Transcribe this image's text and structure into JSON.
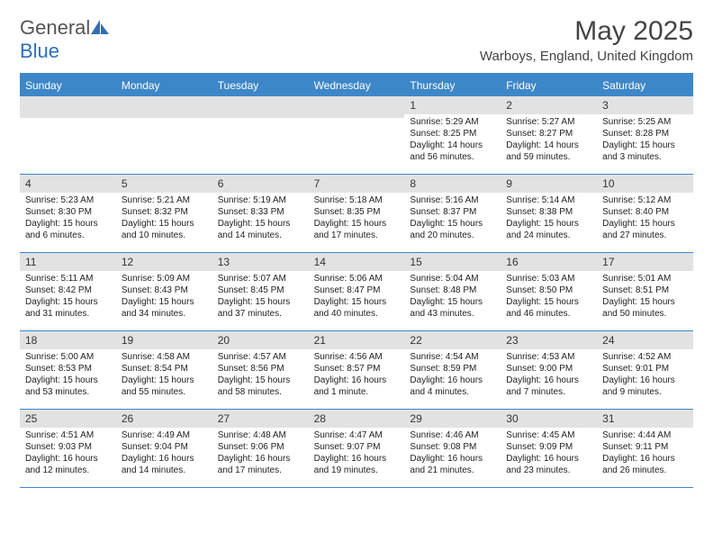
{
  "logo": {
    "part1": "General",
    "part2": "Blue"
  },
  "header": {
    "month_title": "May 2025",
    "location": "Warboys, England, United Kingdom"
  },
  "style": {
    "accent": "#3d87c8",
    "header_text": "#ffffff",
    "num_bg": "#e2e2e2",
    "body_text": "#222222",
    "logo_gray": "#555555",
    "logo_blue": "#2d6fb5"
  },
  "day_names": [
    "Sunday",
    "Monday",
    "Tuesday",
    "Wednesday",
    "Thursday",
    "Friday",
    "Saturday"
  ],
  "weeks": [
    [
      {
        "empty": true
      },
      {
        "empty": true
      },
      {
        "empty": true
      },
      {
        "empty": true
      },
      {
        "num": "1",
        "sunrise": "Sunrise: 5:29 AM",
        "sunset": "Sunset: 8:25 PM",
        "daylight": "Daylight: 14 hours and 56 minutes."
      },
      {
        "num": "2",
        "sunrise": "Sunrise: 5:27 AM",
        "sunset": "Sunset: 8:27 PM",
        "daylight": "Daylight: 14 hours and 59 minutes."
      },
      {
        "num": "3",
        "sunrise": "Sunrise: 5:25 AM",
        "sunset": "Sunset: 8:28 PM",
        "daylight": "Daylight: 15 hours and 3 minutes."
      }
    ],
    [
      {
        "num": "4",
        "sunrise": "Sunrise: 5:23 AM",
        "sunset": "Sunset: 8:30 PM",
        "daylight": "Daylight: 15 hours and 6 minutes."
      },
      {
        "num": "5",
        "sunrise": "Sunrise: 5:21 AM",
        "sunset": "Sunset: 8:32 PM",
        "daylight": "Daylight: 15 hours and 10 minutes."
      },
      {
        "num": "6",
        "sunrise": "Sunrise: 5:19 AM",
        "sunset": "Sunset: 8:33 PM",
        "daylight": "Daylight: 15 hours and 14 minutes."
      },
      {
        "num": "7",
        "sunrise": "Sunrise: 5:18 AM",
        "sunset": "Sunset: 8:35 PM",
        "daylight": "Daylight: 15 hours and 17 minutes."
      },
      {
        "num": "8",
        "sunrise": "Sunrise: 5:16 AM",
        "sunset": "Sunset: 8:37 PM",
        "daylight": "Daylight: 15 hours and 20 minutes."
      },
      {
        "num": "9",
        "sunrise": "Sunrise: 5:14 AM",
        "sunset": "Sunset: 8:38 PM",
        "daylight": "Daylight: 15 hours and 24 minutes."
      },
      {
        "num": "10",
        "sunrise": "Sunrise: 5:12 AM",
        "sunset": "Sunset: 8:40 PM",
        "daylight": "Daylight: 15 hours and 27 minutes."
      }
    ],
    [
      {
        "num": "11",
        "sunrise": "Sunrise: 5:11 AM",
        "sunset": "Sunset: 8:42 PM",
        "daylight": "Daylight: 15 hours and 31 minutes."
      },
      {
        "num": "12",
        "sunrise": "Sunrise: 5:09 AM",
        "sunset": "Sunset: 8:43 PM",
        "daylight": "Daylight: 15 hours and 34 minutes."
      },
      {
        "num": "13",
        "sunrise": "Sunrise: 5:07 AM",
        "sunset": "Sunset: 8:45 PM",
        "daylight": "Daylight: 15 hours and 37 minutes."
      },
      {
        "num": "14",
        "sunrise": "Sunrise: 5:06 AM",
        "sunset": "Sunset: 8:47 PM",
        "daylight": "Daylight: 15 hours and 40 minutes."
      },
      {
        "num": "15",
        "sunrise": "Sunrise: 5:04 AM",
        "sunset": "Sunset: 8:48 PM",
        "daylight": "Daylight: 15 hours and 43 minutes."
      },
      {
        "num": "16",
        "sunrise": "Sunrise: 5:03 AM",
        "sunset": "Sunset: 8:50 PM",
        "daylight": "Daylight: 15 hours and 46 minutes."
      },
      {
        "num": "17",
        "sunrise": "Sunrise: 5:01 AM",
        "sunset": "Sunset: 8:51 PM",
        "daylight": "Daylight: 15 hours and 50 minutes."
      }
    ],
    [
      {
        "num": "18",
        "sunrise": "Sunrise: 5:00 AM",
        "sunset": "Sunset: 8:53 PM",
        "daylight": "Daylight: 15 hours and 53 minutes."
      },
      {
        "num": "19",
        "sunrise": "Sunrise: 4:58 AM",
        "sunset": "Sunset: 8:54 PM",
        "daylight": "Daylight: 15 hours and 55 minutes."
      },
      {
        "num": "20",
        "sunrise": "Sunrise: 4:57 AM",
        "sunset": "Sunset: 8:56 PM",
        "daylight": "Daylight: 15 hours and 58 minutes."
      },
      {
        "num": "21",
        "sunrise": "Sunrise: 4:56 AM",
        "sunset": "Sunset: 8:57 PM",
        "daylight": "Daylight: 16 hours and 1 minute."
      },
      {
        "num": "22",
        "sunrise": "Sunrise: 4:54 AM",
        "sunset": "Sunset: 8:59 PM",
        "daylight": "Daylight: 16 hours and 4 minutes."
      },
      {
        "num": "23",
        "sunrise": "Sunrise: 4:53 AM",
        "sunset": "Sunset: 9:00 PM",
        "daylight": "Daylight: 16 hours and 7 minutes."
      },
      {
        "num": "24",
        "sunrise": "Sunrise: 4:52 AM",
        "sunset": "Sunset: 9:01 PM",
        "daylight": "Daylight: 16 hours and 9 minutes."
      }
    ],
    [
      {
        "num": "25",
        "sunrise": "Sunrise: 4:51 AM",
        "sunset": "Sunset: 9:03 PM",
        "daylight": "Daylight: 16 hours and 12 minutes."
      },
      {
        "num": "26",
        "sunrise": "Sunrise: 4:49 AM",
        "sunset": "Sunset: 9:04 PM",
        "daylight": "Daylight: 16 hours and 14 minutes."
      },
      {
        "num": "27",
        "sunrise": "Sunrise: 4:48 AM",
        "sunset": "Sunset: 9:06 PM",
        "daylight": "Daylight: 16 hours and 17 minutes."
      },
      {
        "num": "28",
        "sunrise": "Sunrise: 4:47 AM",
        "sunset": "Sunset: 9:07 PM",
        "daylight": "Daylight: 16 hours and 19 minutes."
      },
      {
        "num": "29",
        "sunrise": "Sunrise: 4:46 AM",
        "sunset": "Sunset: 9:08 PM",
        "daylight": "Daylight: 16 hours and 21 minutes."
      },
      {
        "num": "30",
        "sunrise": "Sunrise: 4:45 AM",
        "sunset": "Sunset: 9:09 PM",
        "daylight": "Daylight: 16 hours and 23 minutes."
      },
      {
        "num": "31",
        "sunrise": "Sunrise: 4:44 AM",
        "sunset": "Sunset: 9:11 PM",
        "daylight": "Daylight: 16 hours and 26 minutes."
      }
    ]
  ]
}
